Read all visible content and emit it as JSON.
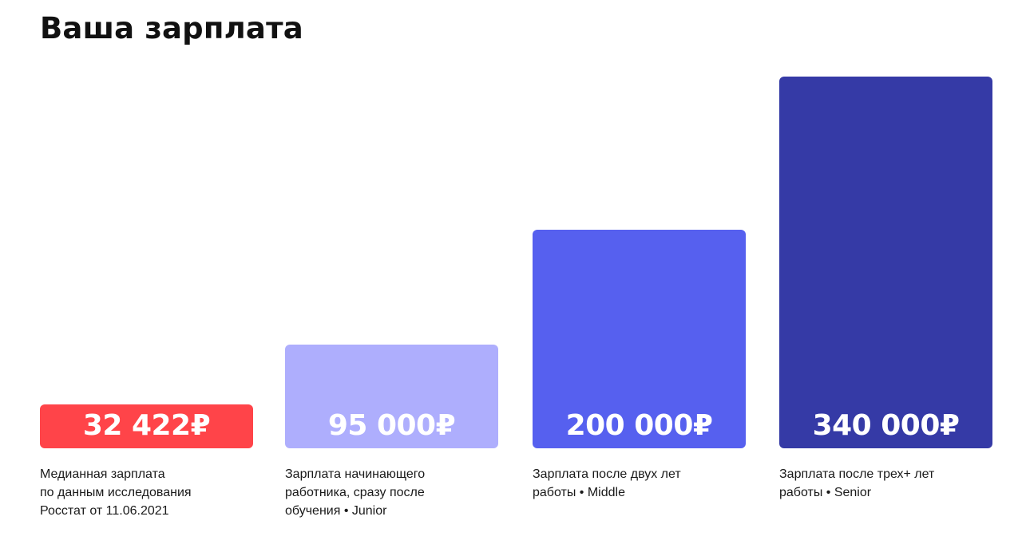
{
  "header": {
    "title": "Ваша зарплата"
  },
  "colors": {
    "median": "#ff4449",
    "junior": "#aeaefd",
    "middle": "#5660ef",
    "senior": "#353aa6"
  },
  "chart_data": {
    "type": "bar",
    "title": "Ваша зарплата",
    "xlabel": "",
    "ylabel": "",
    "ylim": [
      0,
      340000
    ],
    "grid": false,
    "legend": "none",
    "categories": [
      [
        "Медианная зарплата",
        "по данным исследования",
        "Росстат от 11.06.2021"
      ],
      [
        "Зарплата начинающего",
        "работника, сразу после",
        "обучения • Junior"
      ],
      [
        "Зарплата после двух лет",
        "работы • Middle"
      ],
      [
        "Зарплата после трех+ лет",
        "работы • Senior"
      ]
    ],
    "values": [
      32422,
      95000,
      200000,
      340000
    ],
    "value_labels": [
      "32 422₽",
      "95 000₽",
      "200 000₽",
      "340 000₽"
    ],
    "bar_colors": [
      "#ff4449",
      "#aeaefd",
      "#5660ef",
      "#353aa6"
    ]
  }
}
